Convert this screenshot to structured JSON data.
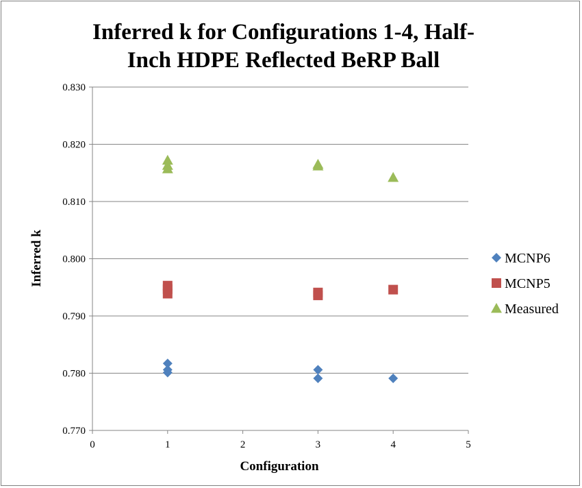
{
  "chart_data": {
    "type": "scatter",
    "title_lines": [
      "Inferred k for Configurations 1-4, Half-",
      "Inch HDPE Reflected BeRP Ball"
    ],
    "xlabel": "Configuration",
    "ylabel": "Inferred k",
    "xlim": [
      0,
      5
    ],
    "ylim": [
      0.77,
      0.83
    ],
    "xticks": [
      0,
      1,
      2,
      3,
      4,
      5
    ],
    "yticks": [
      0.77,
      0.78,
      0.79,
      0.8,
      0.81,
      0.82,
      0.83
    ],
    "y_decimals": 3,
    "grid": "horizontal",
    "legend_position": "right",
    "series": [
      {
        "name": "MCNP6",
        "marker": "diamond",
        "color": "#4f81bd",
        "points": [
          {
            "x": 1,
            "y": 0.7817
          },
          {
            "x": 1,
            "y": 0.7806
          },
          {
            "x": 1,
            "y": 0.7801
          },
          {
            "x": 3,
            "y": 0.7806
          },
          {
            "x": 3,
            "y": 0.7791
          },
          {
            "x": 4,
            "y": 0.7791
          }
        ]
      },
      {
        "name": "MCNP5",
        "marker": "square",
        "color": "#c0504d",
        "points": [
          {
            "x": 1,
            "y": 0.7953
          },
          {
            "x": 1,
            "y": 0.7947
          },
          {
            "x": 1,
            "y": 0.7939
          },
          {
            "x": 3,
            "y": 0.7941
          },
          {
            "x": 3,
            "y": 0.7936
          },
          {
            "x": 4,
            "y": 0.7946
          }
        ]
      },
      {
        "name": "Measured",
        "marker": "triangle",
        "color": "#9bbb59",
        "points": [
          {
            "x": 1,
            "y": 0.8172
          },
          {
            "x": 1,
            "y": 0.8163
          },
          {
            "x": 1,
            "y": 0.8157
          },
          {
            "x": 3,
            "y": 0.8165
          },
          {
            "x": 3,
            "y": 0.8162
          },
          {
            "x": 4,
            "y": 0.8142
          }
        ]
      }
    ]
  }
}
